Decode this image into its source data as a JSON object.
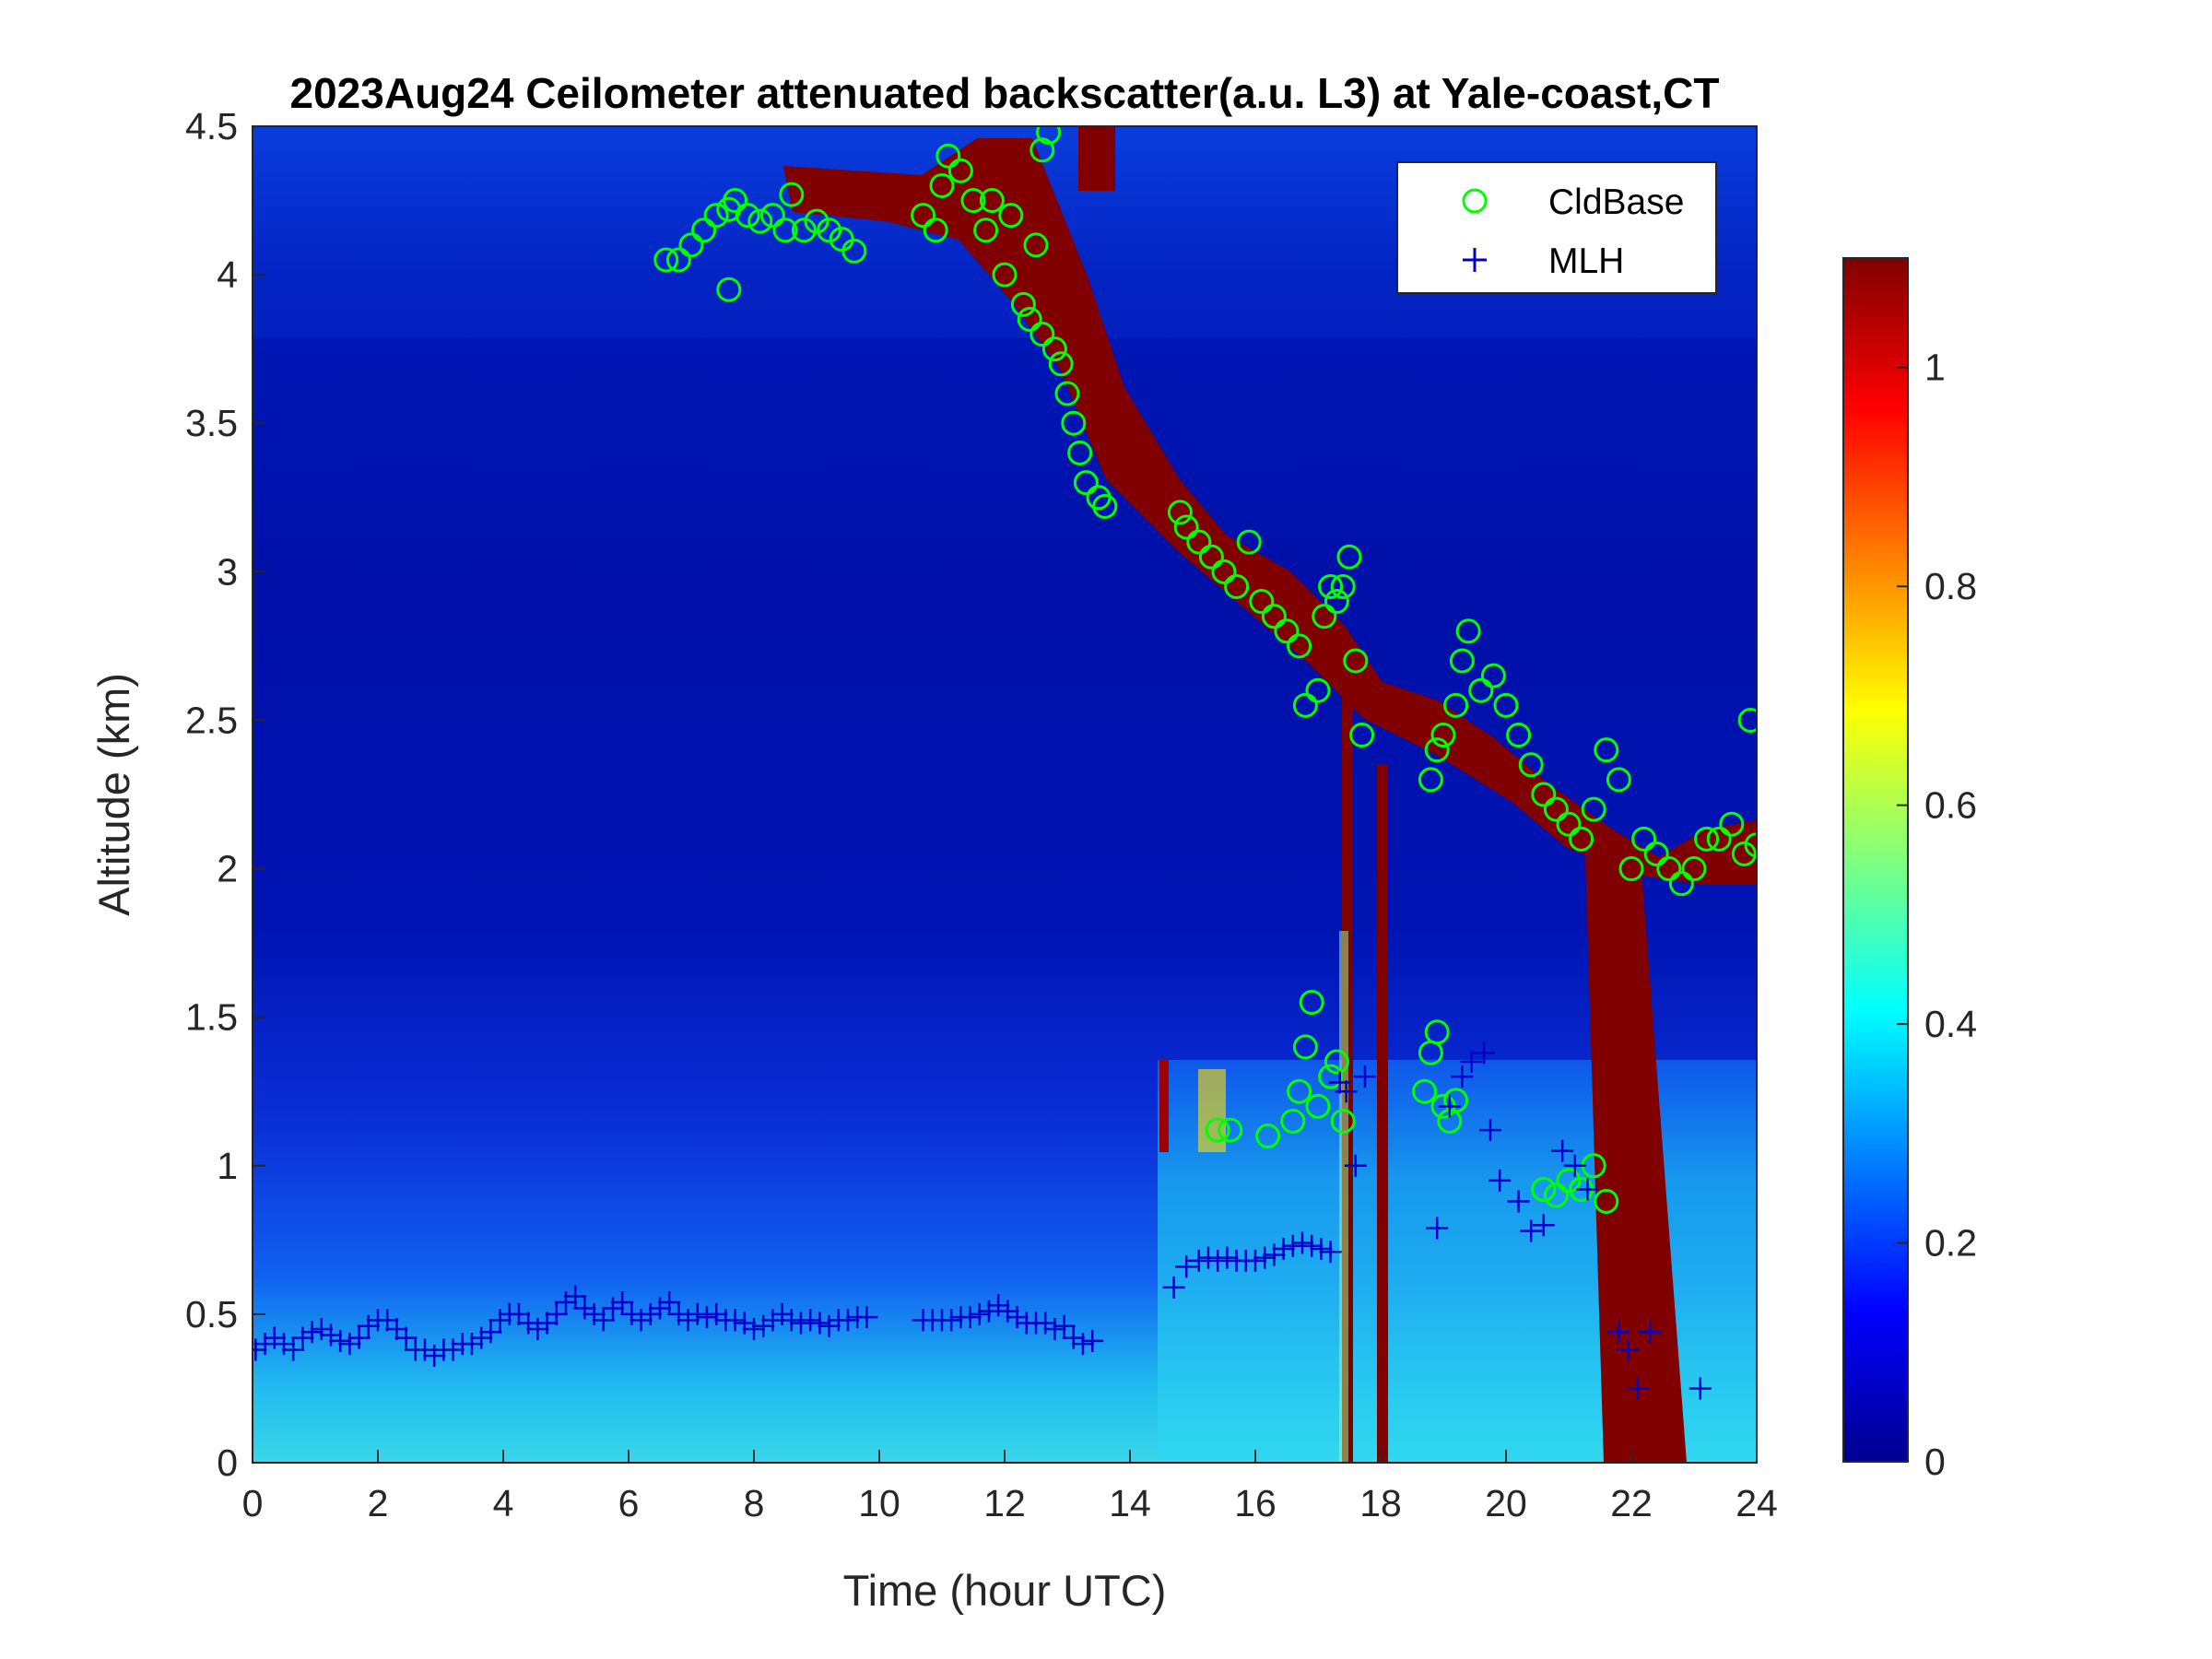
{
  "chart_data": {
    "type": "heatmap",
    "title": "2023Aug24 Ceilometer attenuated backscatter(a.u. L3) at Yale-coast,CT",
    "xlabel": "Time (hour UTC)",
    "ylabel": "Altitude (km)",
    "xlim": [
      0,
      24
    ],
    "ylim": [
      0,
      4.5
    ],
    "xticks": [
      "0",
      "2",
      "4",
      "6",
      "8",
      "10",
      "12",
      "14",
      "16",
      "18",
      "20",
      "22",
      "24"
    ],
    "yticks": [
      "0",
      "0.5",
      "1",
      "1.5",
      "2",
      "2.5",
      "3",
      "3.5",
      "4",
      "4.5"
    ],
    "colorbar": {
      "colormap": "jet",
      "clim": [
        0,
        1.1
      ],
      "ticks": [
        "0",
        "0.2",
        "0.4",
        "0.6",
        "0.8",
        "1"
      ]
    },
    "legend": {
      "location": "top-right",
      "entries": [
        {
          "label": "CldBase",
          "marker": "circle",
          "color": "#00ff00"
        },
        {
          "label": "MLH",
          "marker": "plus",
          "color": "#0000cc"
        }
      ]
    },
    "series": [
      {
        "name": "CldBase",
        "marker": "circle",
        "color": "#00ff00",
        "points": [
          [
            6.6,
            4.05
          ],
          [
            6.8,
            4.05
          ],
          [
            7.0,
            4.1
          ],
          [
            7.2,
            4.15
          ],
          [
            7.4,
            4.2
          ],
          [
            7.6,
            4.22
          ],
          [
            7.7,
            4.25
          ],
          [
            7.6,
            3.95
          ],
          [
            7.9,
            4.2
          ],
          [
            8.1,
            4.18
          ],
          [
            8.3,
            4.2
          ],
          [
            8.5,
            4.15
          ],
          [
            8.6,
            4.27
          ],
          [
            8.8,
            4.15
          ],
          [
            9.0,
            4.18
          ],
          [
            9.2,
            4.15
          ],
          [
            9.4,
            4.12
          ],
          [
            9.6,
            4.08
          ],
          [
            10.7,
            4.2
          ],
          [
            10.9,
            4.15
          ],
          [
            11.0,
            4.3
          ],
          [
            11.1,
            4.4
          ],
          [
            11.3,
            4.35
          ],
          [
            11.5,
            4.25
          ],
          [
            11.7,
            4.15
          ],
          [
            11.8,
            4.25
          ],
          [
            12.0,
            4.0
          ],
          [
            12.1,
            4.2
          ],
          [
            12.3,
            3.9
          ],
          [
            12.4,
            3.85
          ],
          [
            12.5,
            4.1
          ],
          [
            12.6,
            3.8
          ],
          [
            12.6,
            4.42
          ],
          [
            12.7,
            4.48
          ],
          [
            12.8,
            3.75
          ],
          [
            12.9,
            3.7
          ],
          [
            13.0,
            3.6
          ],
          [
            13.1,
            3.5
          ],
          [
            13.2,
            3.4
          ],
          [
            13.3,
            3.3
          ],
          [
            13.5,
            3.25
          ],
          [
            13.6,
            3.22
          ],
          [
            14.8,
            3.2
          ],
          [
            14.9,
            3.15
          ],
          [
            15.1,
            3.1
          ],
          [
            15.3,
            3.05
          ],
          [
            15.5,
            3.0
          ],
          [
            15.7,
            2.95
          ],
          [
            15.9,
            3.1
          ],
          [
            16.1,
            2.9
          ],
          [
            16.3,
            2.85
          ],
          [
            16.5,
            2.8
          ],
          [
            16.7,
            2.75
          ],
          [
            16.8,
            2.55
          ],
          [
            17.0,
            2.6
          ],
          [
            17.1,
            2.85
          ],
          [
            17.2,
            2.95
          ],
          [
            17.3,
            2.9
          ],
          [
            17.4,
            2.95
          ],
          [
            17.5,
            3.05
          ],
          [
            17.6,
            2.7
          ],
          [
            17.7,
            2.45
          ],
          [
            18.8,
            2.3
          ],
          [
            18.9,
            2.4
          ],
          [
            19.0,
            2.45
          ],
          [
            19.2,
            2.55
          ],
          [
            19.3,
            2.7
          ],
          [
            19.4,
            2.8
          ],
          [
            19.6,
            2.6
          ],
          [
            19.8,
            2.65
          ],
          [
            20.0,
            2.55
          ],
          [
            20.2,
            2.45
          ],
          [
            20.4,
            2.35
          ],
          [
            20.6,
            2.25
          ],
          [
            20.8,
            2.2
          ],
          [
            21.0,
            2.15
          ],
          [
            21.2,
            2.1
          ],
          [
            21.4,
            2.2
          ],
          [
            21.6,
            2.4
          ],
          [
            21.8,
            2.3
          ],
          [
            22.0,
            2.0
          ],
          [
            22.2,
            2.1
          ],
          [
            22.4,
            2.05
          ],
          [
            22.6,
            2.0
          ],
          [
            22.8,
            1.95
          ],
          [
            23.0,
            2.0
          ],
          [
            23.2,
            2.1
          ],
          [
            23.4,
            2.1
          ],
          [
            23.6,
            2.15
          ],
          [
            23.8,
            2.05
          ],
          [
            23.9,
            2.5
          ],
          [
            24.0,
            2.08
          ],
          [
            15.4,
            1.12
          ],
          [
            15.6,
            1.12
          ],
          [
            16.2,
            1.1
          ],
          [
            16.6,
            1.15
          ],
          [
            16.7,
            1.25
          ],
          [
            16.8,
            1.4
          ],
          [
            16.9,
            1.55
          ],
          [
            17.0,
            1.2
          ],
          [
            17.2,
            1.3
          ],
          [
            17.3,
            1.35
          ],
          [
            17.4,
            1.15
          ],
          [
            18.7,
            1.25
          ],
          [
            18.8,
            1.38
          ],
          [
            18.9,
            1.45
          ],
          [
            19.0,
            1.2
          ],
          [
            19.1,
            1.15
          ],
          [
            19.2,
            1.22
          ],
          [
            20.6,
            0.92
          ],
          [
            20.8,
            0.9
          ],
          [
            21.0,
            0.95
          ],
          [
            21.2,
            0.92
          ],
          [
            21.4,
            1.0
          ],
          [
            21.6,
            0.88
          ]
        ]
      },
      {
        "name": "MLH",
        "marker": "plus",
        "color": "#0000cc",
        "points": [
          [
            0.05,
            0.38
          ],
          [
            0.2,
            0.4
          ],
          [
            0.35,
            0.42
          ],
          [
            0.5,
            0.4
          ],
          [
            0.65,
            0.38
          ],
          [
            0.8,
            0.42
          ],
          [
            0.95,
            0.44
          ],
          [
            1.1,
            0.45
          ],
          [
            1.25,
            0.43
          ],
          [
            1.4,
            0.41
          ],
          [
            1.55,
            0.4
          ],
          [
            1.7,
            0.42
          ],
          [
            1.85,
            0.46
          ],
          [
            2.0,
            0.48
          ],
          [
            2.15,
            0.48
          ],
          [
            2.3,
            0.45
          ],
          [
            2.45,
            0.42
          ],
          [
            2.6,
            0.38
          ],
          [
            2.75,
            0.38
          ],
          [
            2.9,
            0.36
          ],
          [
            3.05,
            0.38
          ],
          [
            3.2,
            0.38
          ],
          [
            3.35,
            0.4
          ],
          [
            3.5,
            0.4
          ],
          [
            3.65,
            0.42
          ],
          [
            3.8,
            0.44
          ],
          [
            3.95,
            0.48
          ],
          [
            4.1,
            0.5
          ],
          [
            4.25,
            0.5
          ],
          [
            4.4,
            0.47
          ],
          [
            4.55,
            0.45
          ],
          [
            4.7,
            0.47
          ],
          [
            4.85,
            0.5
          ],
          [
            5.0,
            0.54
          ],
          [
            5.15,
            0.56
          ],
          [
            5.3,
            0.52
          ],
          [
            5.45,
            0.5
          ],
          [
            5.6,
            0.48
          ],
          [
            5.75,
            0.52
          ],
          [
            5.9,
            0.54
          ],
          [
            6.05,
            0.5
          ],
          [
            6.2,
            0.48
          ],
          [
            6.35,
            0.5
          ],
          [
            6.5,
            0.52
          ],
          [
            6.65,
            0.54
          ],
          [
            6.8,
            0.5
          ],
          [
            6.95,
            0.48
          ],
          [
            7.1,
            0.5
          ],
          [
            7.25,
            0.49
          ],
          [
            7.4,
            0.5
          ],
          [
            7.55,
            0.48
          ],
          [
            7.7,
            0.48
          ],
          [
            7.85,
            0.47
          ],
          [
            8.0,
            0.45
          ],
          [
            8.15,
            0.46
          ],
          [
            8.3,
            0.48
          ],
          [
            8.45,
            0.5
          ],
          [
            8.6,
            0.48
          ],
          [
            8.75,
            0.47
          ],
          [
            8.9,
            0.48
          ],
          [
            9.05,
            0.47
          ],
          [
            9.2,
            0.46
          ],
          [
            9.35,
            0.48
          ],
          [
            9.5,
            0.48
          ],
          [
            9.65,
            0.49
          ],
          [
            9.8,
            0.49
          ],
          [
            10.7,
            0.48
          ],
          [
            10.85,
            0.48
          ],
          [
            11.0,
            0.48
          ],
          [
            11.15,
            0.48
          ],
          [
            11.3,
            0.49
          ],
          [
            11.45,
            0.49
          ],
          [
            11.6,
            0.5
          ],
          [
            11.75,
            0.51
          ],
          [
            11.9,
            0.53
          ],
          [
            12.05,
            0.51
          ],
          [
            12.2,
            0.49
          ],
          [
            12.35,
            0.47
          ],
          [
            12.5,
            0.47
          ],
          [
            12.65,
            0.47
          ],
          [
            12.8,
            0.45
          ],
          [
            12.95,
            0.46
          ],
          [
            13.1,
            0.42
          ],
          [
            13.25,
            0.4
          ],
          [
            13.4,
            0.41
          ],
          [
            14.7,
            0.59
          ],
          [
            14.9,
            0.66
          ],
          [
            15.1,
            0.68
          ],
          [
            15.25,
            0.69
          ],
          [
            15.4,
            0.68
          ],
          [
            15.55,
            0.69
          ],
          [
            15.7,
            0.68
          ],
          [
            15.85,
            0.68
          ],
          [
            16.0,
            0.68
          ],
          [
            16.15,
            0.69
          ],
          [
            16.3,
            0.7
          ],
          [
            16.45,
            0.72
          ],
          [
            16.6,
            0.73
          ],
          [
            16.75,
            0.74
          ],
          [
            16.9,
            0.73
          ],
          [
            17.05,
            0.72
          ],
          [
            17.2,
            0.71
          ],
          [
            17.35,
            1.28
          ],
          [
            17.45,
            1.25
          ],
          [
            17.6,
            1.0
          ],
          [
            17.75,
            1.3
          ],
          [
            18.9,
            0.79
          ],
          [
            19.1,
            1.2
          ],
          [
            19.3,
            1.3
          ],
          [
            19.45,
            1.35
          ],
          [
            19.65,
            1.38
          ],
          [
            19.75,
            1.12
          ],
          [
            19.9,
            0.95
          ],
          [
            20.2,
            0.88
          ],
          [
            20.4,
            0.78
          ],
          [
            20.6,
            0.8
          ],
          [
            20.9,
            1.05
          ],
          [
            21.1,
            1.0
          ],
          [
            21.3,
            0.92
          ],
          [
            21.8,
            0.44
          ],
          [
            21.95,
            0.38
          ],
          [
            22.1,
            0.25
          ],
          [
            22.3,
            0.44
          ],
          [
            23.1,
            0.25
          ]
        ]
      }
    ]
  }
}
